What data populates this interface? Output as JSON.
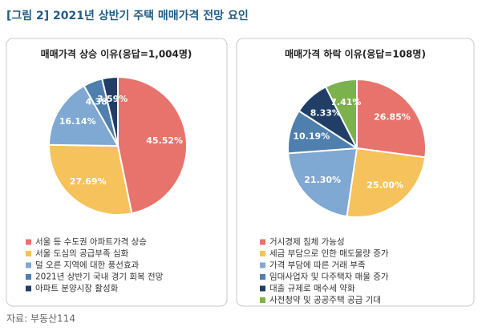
{
  "title": "[그림 2] 2021년 상반기 주택 매매가격 전망 요인",
  "source": "자료: 부동산114",
  "chart_data": [
    {
      "type": "pie",
      "title": "매매가격 상승 이유(응답=1,004명)",
      "categories": [
        "서울 등 수도권 아파트가격 상승",
        "서울 도심의 공급부족 심화",
        "덜 오른 지역에 대한 풍선효과",
        "2021년 상반기 국내 경기 회복 전망",
        "아파트 분양시장 활성화"
      ],
      "values": [
        45.52,
        27.69,
        16.14,
        4.38,
        3.59
      ],
      "value_labels": [
        "45.52%",
        "27.69%",
        "16.14%",
        "4.38%",
        "3.59%"
      ],
      "colors": [
        "#e8736c",
        "#f6c25b",
        "#7fa8d2",
        "#4f7fad",
        "#213f66"
      ]
    },
    {
      "type": "pie",
      "title": "매매가격 하락 이유(응답=108명)",
      "categories": [
        "거시경제 침체 가능성",
        "세금 부담으로 인한 매도물량 증가",
        "가격 부담에 따른 거래 부족",
        "임대사업자 및 다주택자 매물 증가",
        "대출 규제로 매수세 약화",
        "사전청약 및 공공주택 공급 기대"
      ],
      "values": [
        26.85,
        25.0,
        21.3,
        10.19,
        8.33,
        7.41
      ],
      "value_labels": [
        "26.85%",
        "25.00%",
        "21.30%",
        "10.19%",
        "8.33%",
        "7.41%"
      ],
      "colors": [
        "#e8736c",
        "#f6c25b",
        "#7fa8d2",
        "#4f7fad",
        "#213f66",
        "#7cb24b"
      ]
    }
  ]
}
